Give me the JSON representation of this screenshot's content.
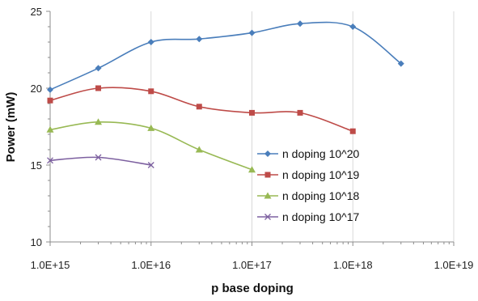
{
  "chart_data": {
    "type": "line",
    "title": "",
    "xlabel": "p base doping",
    "ylabel": "Power (mW)",
    "x_scale": "log",
    "xlim": [
      "1.0E+15",
      "1.0E+19"
    ],
    "ylim": [
      10,
      25
    ],
    "x_ticks": [
      "1.0E+15",
      "1.0E+16",
      "1.0E+17",
      "1.0E+18",
      "1.0E+19"
    ],
    "y_ticks": [
      "10",
      "15",
      "20",
      "25"
    ],
    "grid": "vertical",
    "legend_position": "right",
    "series": [
      {
        "name": "n doping 10^20",
        "color": "#4a7ebb",
        "marker": "diamond",
        "x": [
          "1.0E+15",
          "3.0E+15",
          "1.0E+16",
          "3.0E+16",
          "1.0E+17",
          "3.0E+17",
          "1.0E+18",
          "3.0E+18"
        ],
        "y": [
          19.9,
          21.3,
          23.0,
          23.2,
          23.6,
          24.2,
          24.0,
          21.6
        ]
      },
      {
        "name": "n doping 10^19",
        "color": "#be4b48",
        "marker": "square",
        "x": [
          "1.0E+15",
          "3.0E+15",
          "1.0E+16",
          "3.0E+16",
          "1.0E+17",
          "3.0E+17",
          "1.0E+18"
        ],
        "y": [
          19.2,
          20.0,
          19.8,
          18.8,
          18.4,
          18.4,
          17.2
        ]
      },
      {
        "name": "n doping 10^18",
        "color": "#98b954",
        "marker": "triangle",
        "x": [
          "1.0E+15",
          "3.0E+15",
          "1.0E+16",
          "3.0E+16",
          "1.0E+17"
        ],
        "y": [
          17.3,
          17.8,
          17.4,
          16.0,
          14.7
        ]
      },
      {
        "name": "n doping 10^17",
        "color": "#7d60a0",
        "marker": "x",
        "x": [
          "1.0E+15",
          "3.0E+15",
          "1.0E+16"
        ],
        "y": [
          15.3,
          15.5,
          15.0
        ]
      }
    ]
  }
}
